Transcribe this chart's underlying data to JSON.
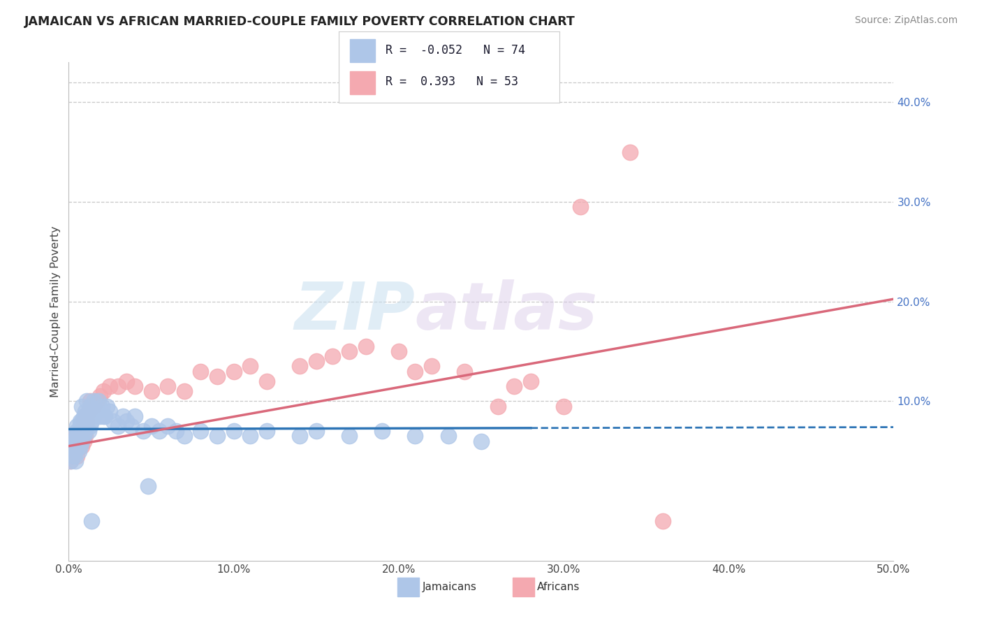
{
  "title": "JAMAICAN VS AFRICAN MARRIED-COUPLE FAMILY POVERTY CORRELATION CHART",
  "source": "Source: ZipAtlas.com",
  "ylabel": "Married-Couple Family Poverty",
  "xlim": [
    0.0,
    0.5
  ],
  "ylim": [
    -0.06,
    0.44
  ],
  "xticks": [
    0.0,
    0.1,
    0.2,
    0.3,
    0.4,
    0.5
  ],
  "xtick_labels": [
    "0.0%",
    "10.0%",
    "20.0%",
    "30.0%",
    "40.0%",
    "50.0%"
  ],
  "yticks": [
    0.1,
    0.2,
    0.3,
    0.4
  ],
  "ytick_labels": [
    "10.0%",
    "20.0%",
    "30.0%",
    "40.0%"
  ],
  "grid_color": "#c8c8c8",
  "background_color": "#ffffff",
  "jamaicans_color": "#aec6e8",
  "africans_color": "#f4a9b0",
  "jamaicans_line_color": "#2e75b6",
  "africans_line_color": "#d9687a",
  "R_jamaicans": -0.052,
  "N_jamaicans": 74,
  "R_africans": 0.393,
  "N_africans": 53,
  "legend_label_jamaicans": "Jamaicans",
  "legend_label_africans": "Africans",
  "watermark_zip": "ZIP",
  "watermark_atlas": "atlas",
  "j_line_x_solid_end": 0.28,
  "j_line_intercept": 0.072,
  "j_line_slope": 0.004,
  "a_line_intercept": 0.055,
  "a_line_slope": 0.295,
  "jamaicans_x": [
    0.001,
    0.002,
    0.002,
    0.003,
    0.003,
    0.003,
    0.004,
    0.004,
    0.004,
    0.005,
    0.005,
    0.005,
    0.005,
    0.006,
    0.006,
    0.006,
    0.007,
    0.007,
    0.007,
    0.007,
    0.008,
    0.008,
    0.008,
    0.008,
    0.009,
    0.009,
    0.009,
    0.01,
    0.01,
    0.01,
    0.011,
    0.011,
    0.012,
    0.012,
    0.013,
    0.013,
    0.014,
    0.015,
    0.015,
    0.016,
    0.017,
    0.018,
    0.019,
    0.02,
    0.021,
    0.022,
    0.023,
    0.025,
    0.027,
    0.03,
    0.033,
    0.035,
    0.038,
    0.04,
    0.045,
    0.05,
    0.055,
    0.06,
    0.065,
    0.07,
    0.08,
    0.09,
    0.1,
    0.11,
    0.12,
    0.14,
    0.15,
    0.17,
    0.19,
    0.21,
    0.23,
    0.25,
    0.014,
    0.048
  ],
  "jamaicans_y": [
    0.04,
    0.055,
    0.06,
    0.045,
    0.055,
    0.065,
    0.04,
    0.05,
    0.06,
    0.055,
    0.065,
    0.07,
    0.075,
    0.05,
    0.06,
    0.07,
    0.055,
    0.065,
    0.075,
    0.08,
    0.06,
    0.07,
    0.08,
    0.095,
    0.065,
    0.075,
    0.085,
    0.07,
    0.08,
    0.09,
    0.075,
    0.1,
    0.07,
    0.09,
    0.075,
    0.095,
    0.08,
    0.085,
    0.1,
    0.09,
    0.09,
    0.1,
    0.085,
    0.095,
    0.085,
    0.085,
    0.095,
    0.09,
    0.08,
    0.075,
    0.085,
    0.08,
    0.075,
    0.085,
    0.07,
    0.075,
    0.07,
    0.075,
    0.07,
    0.065,
    0.07,
    0.065,
    0.07,
    0.065,
    0.07,
    0.065,
    0.07,
    0.065,
    0.07,
    0.065,
    0.065,
    0.06,
    -0.02,
    0.015
  ],
  "africans_x": [
    0.001,
    0.002,
    0.003,
    0.003,
    0.004,
    0.004,
    0.005,
    0.005,
    0.006,
    0.006,
    0.007,
    0.007,
    0.008,
    0.008,
    0.009,
    0.009,
    0.01,
    0.01,
    0.011,
    0.012,
    0.013,
    0.015,
    0.017,
    0.019,
    0.021,
    0.025,
    0.03,
    0.035,
    0.04,
    0.05,
    0.06,
    0.07,
    0.08,
    0.09,
    0.1,
    0.11,
    0.12,
    0.14,
    0.15,
    0.16,
    0.17,
    0.18,
    0.2,
    0.21,
    0.22,
    0.24,
    0.26,
    0.27,
    0.28,
    0.3,
    0.31,
    0.34,
    0.36
  ],
  "africans_y": [
    0.04,
    0.045,
    0.05,
    0.06,
    0.055,
    0.065,
    0.045,
    0.06,
    0.055,
    0.065,
    0.06,
    0.07,
    0.055,
    0.065,
    0.06,
    0.08,
    0.065,
    0.085,
    0.08,
    0.09,
    0.1,
    0.095,
    0.1,
    0.105,
    0.11,
    0.115,
    0.115,
    0.12,
    0.115,
    0.11,
    0.115,
    0.11,
    0.13,
    0.125,
    0.13,
    0.135,
    0.12,
    0.135,
    0.14,
    0.145,
    0.15,
    0.155,
    0.15,
    0.13,
    0.135,
    0.13,
    0.095,
    0.115,
    0.12,
    0.095,
    0.295,
    0.35,
    -0.02
  ]
}
